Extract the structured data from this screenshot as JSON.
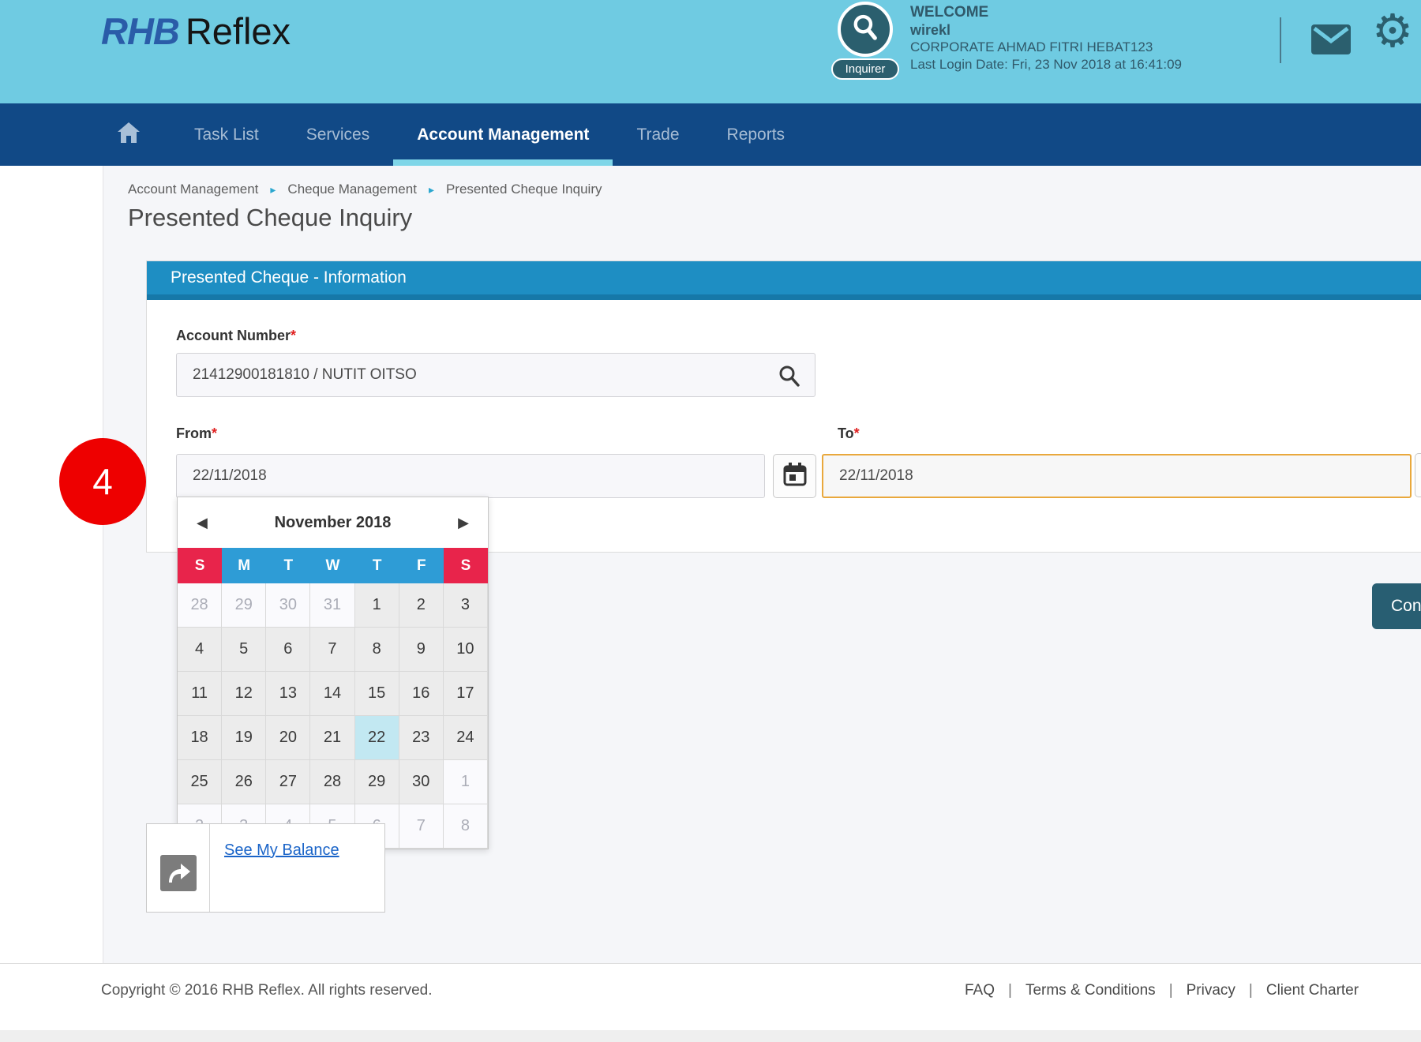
{
  "header": {
    "logo_rhb": "RHB",
    "logo_reflex": "Reflex",
    "role_badge": "Inquirer",
    "welcome": "WELCOME",
    "username": "wirekl",
    "corporate": "CORPORATE AHMAD FITRI HEBAT123",
    "last_login": "Last Login Date: Fri, 23 Nov 2018 at 16:41:09"
  },
  "nav": {
    "items": [
      {
        "label": "Task List",
        "active": false
      },
      {
        "label": "Services",
        "active": false
      },
      {
        "label": "Account Management",
        "active": true
      },
      {
        "label": "Trade",
        "active": false
      },
      {
        "label": "Reports",
        "active": false
      }
    ]
  },
  "breadcrumb": {
    "items": [
      "Account Management",
      "Cheque Management",
      "Presented Cheque Inquiry"
    ]
  },
  "page": {
    "title": "Presented Cheque Inquiry"
  },
  "panel": {
    "header": "Presented Cheque - Information",
    "required_mark": "*",
    "account_label": "Account Number",
    "account_value": "21412900181810 / NUTIT OITSO",
    "from_label": "From",
    "from_value": "22/11/2018",
    "to_label": "To",
    "to_value": "22/11/2018"
  },
  "annotation": {
    "number": "4"
  },
  "calendar": {
    "month_title": "November 2018",
    "day_headers": [
      {
        "label": "S",
        "color": "red"
      },
      {
        "label": "M",
        "color": "blue"
      },
      {
        "label": "T",
        "color": "blue"
      },
      {
        "label": "W",
        "color": "blue"
      },
      {
        "label": "T",
        "color": "blue"
      },
      {
        "label": "F",
        "color": "blue"
      },
      {
        "label": "S",
        "color": "red"
      }
    ],
    "weeks": [
      [
        {
          "d": "28",
          "muted": true
        },
        {
          "d": "29",
          "muted": true
        },
        {
          "d": "30",
          "muted": true
        },
        {
          "d": "31",
          "muted": true
        },
        {
          "d": "1"
        },
        {
          "d": "2"
        },
        {
          "d": "3"
        }
      ],
      [
        {
          "d": "4"
        },
        {
          "d": "5"
        },
        {
          "d": "6"
        },
        {
          "d": "7"
        },
        {
          "d": "8"
        },
        {
          "d": "9"
        },
        {
          "d": "10"
        }
      ],
      [
        {
          "d": "11"
        },
        {
          "d": "12"
        },
        {
          "d": "13"
        },
        {
          "d": "14"
        },
        {
          "d": "15"
        },
        {
          "d": "16"
        },
        {
          "d": "17"
        }
      ],
      [
        {
          "d": "18"
        },
        {
          "d": "19"
        },
        {
          "d": "20"
        },
        {
          "d": "21"
        },
        {
          "d": "22",
          "selected": true
        },
        {
          "d": "23"
        },
        {
          "d": "24"
        }
      ],
      [
        {
          "d": "25"
        },
        {
          "d": "26"
        },
        {
          "d": "27"
        },
        {
          "d": "28"
        },
        {
          "d": "29"
        },
        {
          "d": "30"
        },
        {
          "d": "1",
          "muted": true
        }
      ],
      [
        {
          "d": "2",
          "muted": true
        },
        {
          "d": "3",
          "muted": true
        },
        {
          "d": "4",
          "muted": true
        },
        {
          "d": "5",
          "muted": true
        },
        {
          "d": "6",
          "muted": true
        },
        {
          "d": "7",
          "muted": true
        },
        {
          "d": "8",
          "muted": true
        }
      ]
    ]
  },
  "balance_widget": {
    "link": "See My Balance"
  },
  "continue_button": {
    "label": "Continue"
  },
  "footer": {
    "copyright": "Copyright © 2016 RHB Reflex. All rights reserved.",
    "links": [
      "FAQ",
      "Terms & Conditions",
      "Privacy",
      "Client Charter"
    ]
  },
  "icons": {
    "gear": "⚙",
    "prev": "◀",
    "next": "▶",
    "crumb_sep": "▸",
    "link_sep": "|"
  },
  "colors": {
    "header_bg": "#6FCBE2",
    "nav_bg": "#114986",
    "nav_active_underline": "#7FD6E8",
    "panel_header_bg": "#1E8EC3",
    "day_red": "#E8244B",
    "day_blue": "#2E9CD6",
    "selected_day_bg": "#C2E8F2",
    "to_field_border": "#E9A83C",
    "annotation_red": "#EE0000",
    "link_blue": "#1A64C8",
    "button_teal": "#285E72"
  }
}
